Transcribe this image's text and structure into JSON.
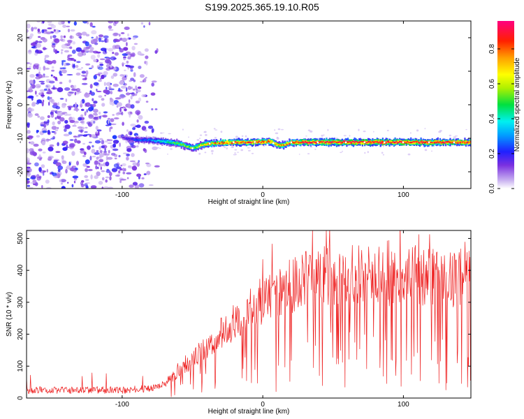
{
  "title": "S199.2025.365.19.10.R05",
  "colors": {
    "snr_line": "#ee2020",
    "signal_point": "#ffffff"
  },
  "chart_data": [
    {
      "type": "heatmap",
      "name": "spectrogram",
      "xlabel": "Height of straight line (km)",
      "ylabel": "Frequency (Hz)",
      "xlim": [
        -168,
        148
      ],
      "ylim": [
        -25,
        25
      ],
      "xticks": [
        -100,
        0,
        100
      ],
      "yticks": [
        -20,
        -10,
        0,
        10,
        20
      ],
      "colorbar": {
        "label": "Normalized spectral amplitude",
        "range": [
          0.0,
          0.96
        ],
        "ticks": [
          0.0,
          0.2,
          0.4,
          0.6,
          0.8
        ]
      },
      "noise_region_x": [
        -168,
        -72
      ],
      "signal_track": {
        "x": [
          -100,
          -90,
          -80,
          -70,
          -60,
          -50,
          -45,
          -40,
          -30,
          -20,
          -10,
          0,
          5,
          10,
          14,
          20,
          40,
          60,
          80,
          100,
          120,
          148
        ],
        "frequency_hz": [
          -10.0,
          -10.4,
          -10.6,
          -11.0,
          -11.6,
          -13.0,
          -12.2,
          -11.6,
          -11.4,
          -11.2,
          -11.2,
          -11.0,
          -11.0,
          -12.0,
          -12.1,
          -11.2,
          -11.2,
          -11.2,
          -11.2,
          -11.2,
          -11.2,
          -11.2
        ],
        "amplitude": [
          0.15,
          0.25,
          0.3,
          0.45,
          0.55,
          0.55,
          0.65,
          0.75,
          0.8,
          0.85,
          0.85,
          0.85,
          0.8,
          0.75,
          0.75,
          0.9,
          0.92,
          0.95,
          0.95,
          0.95,
          0.92,
          0.9
        ]
      }
    },
    {
      "type": "line",
      "name": "snr",
      "xlabel": "Height of straight line (km)",
      "ylabel": "SNR (10 * v/v)",
      "xlim": [
        -168,
        148
      ],
      "ylim": [
        0,
        525
      ],
      "xticks": [
        -100,
        0,
        100
      ],
      "yticks": [
        0,
        100,
        200,
        300,
        400,
        500
      ],
      "trend": {
        "x": [
          -168,
          -140,
          -100,
          -80,
          -70,
          -60,
          -50,
          -40,
          -30,
          -20,
          -10,
          0,
          10,
          20,
          30,
          40,
          50,
          60,
          80,
          100,
          120,
          148
        ],
        "snr": [
          25,
          25,
          25,
          30,
          45,
          80,
          120,
          160,
          200,
          240,
          280,
          310,
          330,
          350,
          370,
          380,
          385,
          385,
          380,
          380,
          380,
          380
        ]
      },
      "peak": {
        "x": 45,
        "snr": 525
      },
      "noise_spread_fraction": 0.25
    }
  ]
}
